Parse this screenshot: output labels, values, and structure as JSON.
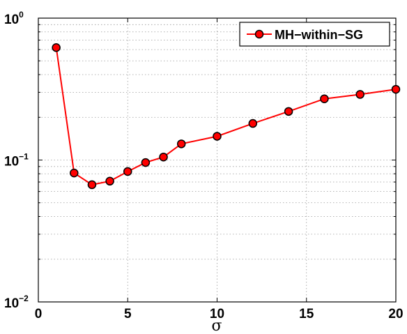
{
  "chart_data": {
    "type": "line",
    "xlabel": "σ",
    "ylabel": "",
    "title": "",
    "xlim": [
      0,
      20
    ],
    "ylim": [
      0.01,
      1
    ],
    "yscale": "log",
    "grid": true,
    "legend_position": "top-right",
    "x_ticks": [
      "0",
      "5",
      "10",
      "15",
      "20"
    ],
    "y_ticks": [
      {
        "base": "10",
        "exp": "0"
      },
      {
        "base": "10",
        "exp": "−1"
      },
      {
        "base": "10",
        "exp": "−2"
      }
    ],
    "series": [
      {
        "name": "MH−within−SG",
        "color": "#ff0000",
        "marker_fill": "#ff0000",
        "marker_edge": "#000000",
        "x": [
          1,
          2,
          3,
          4,
          5,
          6,
          7,
          8,
          10,
          12,
          14,
          16,
          18,
          20
        ],
        "y": [
          0.62,
          0.081,
          0.067,
          0.071,
          0.083,
          0.096,
          0.105,
          0.13,
          0.147,
          0.181,
          0.22,
          0.27,
          0.29,
          0.315
        ]
      }
    ]
  }
}
